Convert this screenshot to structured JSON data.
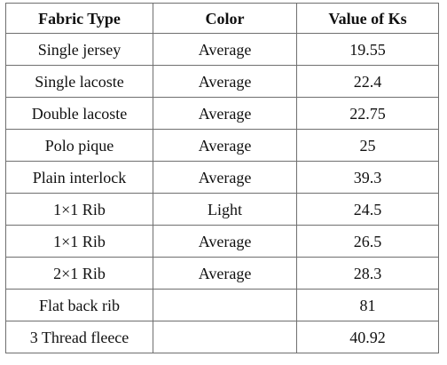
{
  "table": {
    "headers": [
      "Fabric Type",
      "Color",
      "Value of Ks"
    ],
    "rows": [
      [
        "Single jersey",
        "Average",
        "19.55"
      ],
      [
        "Single lacoste",
        "Average",
        "22.4"
      ],
      [
        "Double lacoste",
        "Average",
        "22.75"
      ],
      [
        "Polo pique",
        "Average",
        "25"
      ],
      [
        "Plain interlock",
        "Average",
        "39.3"
      ],
      [
        "1×1 Rib",
        "Light",
        "24.5"
      ],
      [
        "1×1 Rib",
        "Average",
        "26.5"
      ],
      [
        "2×1 Rib",
        "Average",
        "28.3"
      ],
      [
        "Flat back rib",
        "",
        "81"
      ],
      [
        "3 Thread fleece",
        "",
        "40.92"
      ]
    ]
  }
}
